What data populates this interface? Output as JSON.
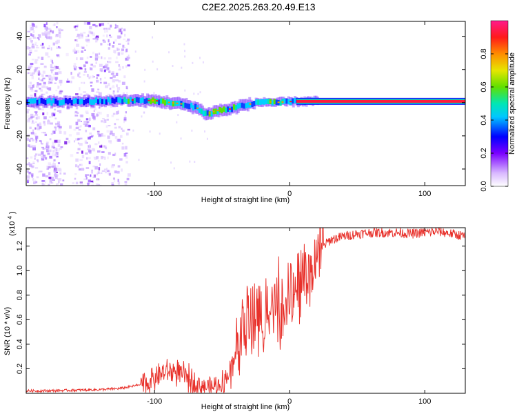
{
  "figure": {
    "title": "C2E2.2025.263.20.49.E13"
  },
  "chart_data": [
    {
      "type": "heatmap",
      "xlabel": "Height of straight line (km)",
      "ylabel": "Frequency (Hz)",
      "xlim": [
        -195,
        130
      ],
      "ylim": [
        -50,
        49
      ],
      "xticks": [
        -100,
        0,
        100
      ],
      "yticks": [
        -40,
        -20,
        0,
        20,
        40
      ],
      "colorbar": {
        "label": "Normalized spectral amplitude",
        "range": [
          0,
          1
        ],
        "ticks": [
          "0.0",
          "0.2",
          "0.4",
          "0.6",
          "0.8"
        ]
      },
      "description_of_trace": "strong narrow line near 0 Hz from about -120 km to 130 km, dipping to about -8 Hz near -60 km; diffuse noise at x < -120 km",
      "trace_center": [
        {
          "x": -195,
          "f": 0.5
        },
        {
          "x": -160,
          "f": 0.5
        },
        {
          "x": -120,
          "f": 1.5
        },
        {
          "x": -100,
          "f": 1.0
        },
        {
          "x": -90,
          "f": 0.0
        },
        {
          "x": -80,
          "f": -1.0
        },
        {
          "x": -70,
          "f": -3.0
        },
        {
          "x": -62,
          "f": -7.0
        },
        {
          "x": -55,
          "f": -5.0
        },
        {
          "x": -45,
          "f": -4.0
        },
        {
          "x": -38,
          "f": -2.0
        },
        {
          "x": -30,
          "f": -1.0
        },
        {
          "x": -20,
          "f": 0.5
        },
        {
          "x": -10,
          "f": 0.0
        },
        {
          "x": 0,
          "f": 0.5
        },
        {
          "x": 10,
          "f": 0.8
        },
        {
          "x": 20,
          "f": 0.8
        },
        {
          "x": 130,
          "f": 0.8
        }
      ]
    },
    {
      "type": "line",
      "xlabel": "Height of straight line (km)",
      "ylabel": "SNR (10 * v/v)",
      "multiplier": "(x10",
      "multiplier_exp": "4",
      "multiplier_close": ")",
      "xlim": [
        -195,
        130
      ],
      "ylim": [
        0,
        1.35
      ],
      "xticks": [
        -100,
        0,
        100
      ],
      "yticks": [
        0.2,
        0.4,
        0.6,
        0.8,
        1.0,
        1.2
      ],
      "series": [
        {
          "name": "SNR",
          "color": "#e8312b",
          "x": [
            -195,
            -180,
            -160,
            -140,
            -125,
            -115,
            -105,
            -95,
            -85,
            -75,
            -65,
            -55,
            -48,
            -42,
            -36,
            -30,
            -24,
            -18,
            -12,
            -6,
            0,
            5,
            10,
            15,
            20,
            25,
            30,
            40,
            50,
            60,
            70,
            80,
            90,
            100,
            110,
            120,
            130
          ],
          "y": [
            0.02,
            0.02,
            0.025,
            0.03,
            0.04,
            0.06,
            0.09,
            0.16,
            0.18,
            0.12,
            0.06,
            0.05,
            0.1,
            0.25,
            0.55,
            0.6,
            0.6,
            0.65,
            0.7,
            0.75,
            0.82,
            0.9,
            1.0,
            1.08,
            1.15,
            1.2,
            1.25,
            1.28,
            1.3,
            1.31,
            1.31,
            1.31,
            1.3,
            1.31,
            1.32,
            1.3,
            1.28
          ]
        }
      ]
    }
  ]
}
